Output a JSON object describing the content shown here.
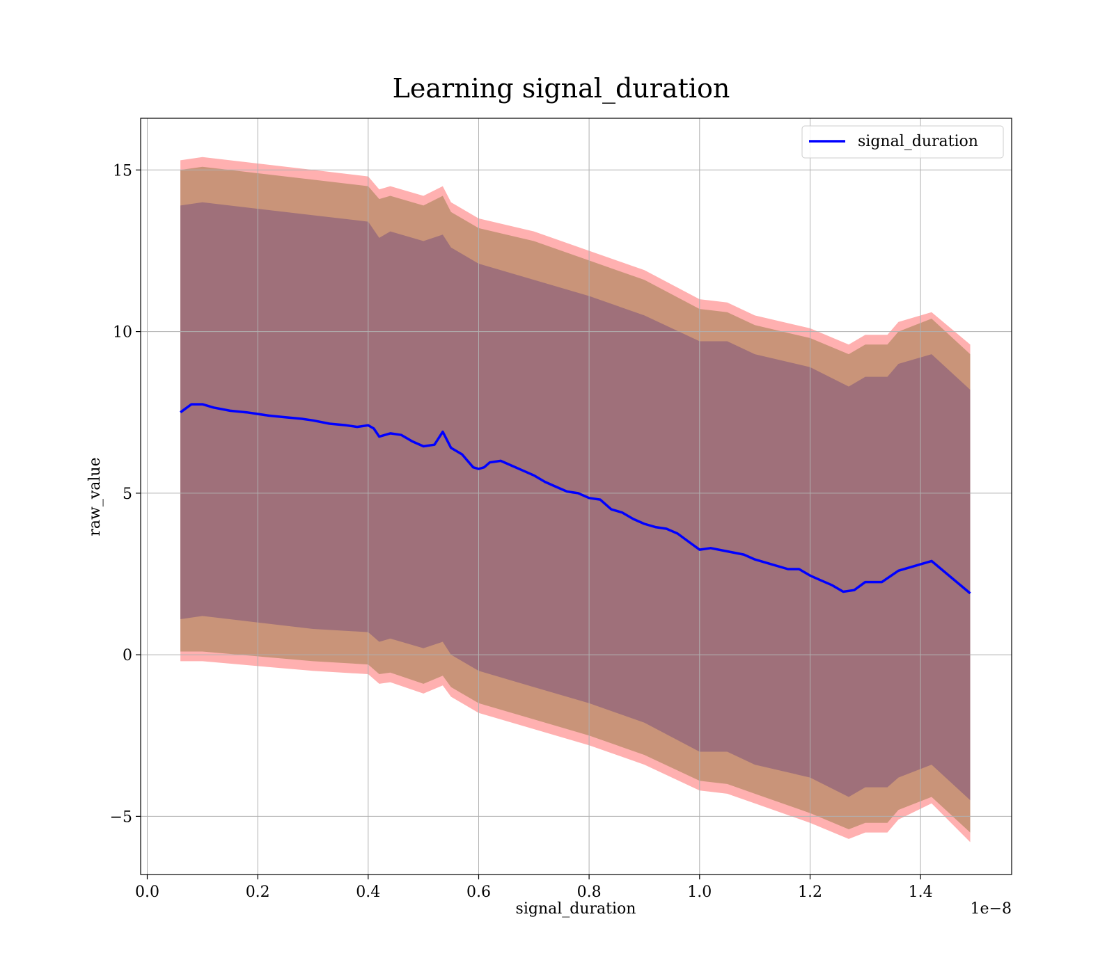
{
  "chart_data": {
    "type": "line",
    "title": "Learning signal_duration",
    "xlabel": "signal_duration",
    "ylabel": "raw_value",
    "x_offset_label": "1e−8",
    "xlim": [
      -0.012,
      1.565
    ],
    "ylim": [
      -6.8,
      16.6
    ],
    "xticks": [
      0.0,
      0.2,
      0.4,
      0.6,
      0.8,
      1.0,
      1.2,
      1.4
    ],
    "xtick_labels": [
      "0.0",
      "0.2",
      "0.4",
      "0.6",
      "0.8",
      "1.0",
      "1.2",
      "1.4"
    ],
    "yticks": [
      -5,
      0,
      5,
      10,
      15
    ],
    "ytick_labels": [
      "−5",
      "0",
      "5",
      "10",
      "15"
    ],
    "grid": true,
    "legend_position": "top-right",
    "colors": {
      "line": "#0000ff",
      "inner_band": "#9f707a",
      "middle_band": "#c99479",
      "outer_band": "#ffb0b0"
    },
    "series": [
      {
        "name": "signal_duration",
        "x": [
          0.06,
          0.08,
          0.1,
          0.12,
          0.15,
          0.18,
          0.2,
          0.22,
          0.25,
          0.28,
          0.3,
          0.33,
          0.36,
          0.38,
          0.4,
          0.41,
          0.42,
          0.44,
          0.46,
          0.48,
          0.5,
          0.52,
          0.535,
          0.55,
          0.57,
          0.58,
          0.59,
          0.6,
          0.61,
          0.62,
          0.64,
          0.66,
          0.68,
          0.7,
          0.72,
          0.74,
          0.76,
          0.78,
          0.8,
          0.82,
          0.84,
          0.86,
          0.88,
          0.9,
          0.92,
          0.94,
          0.96,
          0.98,
          1.0,
          1.02,
          1.05,
          1.08,
          1.1,
          1.13,
          1.16,
          1.18,
          1.2,
          1.22,
          1.24,
          1.26,
          1.28,
          1.3,
          1.33,
          1.36,
          1.42,
          1.49
        ],
        "y": [
          7.5,
          7.75,
          7.75,
          7.65,
          7.55,
          7.5,
          7.45,
          7.4,
          7.35,
          7.3,
          7.25,
          7.15,
          7.1,
          7.05,
          7.1,
          7.0,
          6.75,
          6.85,
          6.8,
          6.6,
          6.45,
          6.5,
          6.9,
          6.4,
          6.2,
          6.0,
          5.8,
          5.75,
          5.8,
          5.95,
          6.0,
          5.85,
          5.7,
          5.55,
          5.35,
          5.2,
          5.05,
          5.0,
          4.85,
          4.8,
          4.5,
          4.4,
          4.2,
          4.05,
          3.95,
          3.9,
          3.75,
          3.5,
          3.25,
          3.3,
          3.2,
          3.1,
          2.95,
          2.8,
          2.65,
          2.65,
          2.45,
          2.3,
          2.15,
          1.95,
          2.0,
          2.25,
          2.25,
          2.6,
          2.9,
          1.9
        ]
      }
    ],
    "bands": [
      {
        "x": [
          0.06,
          0.1,
          0.2,
          0.3,
          0.4,
          0.42,
          0.44,
          0.5,
          0.535,
          0.55,
          0.6,
          0.7,
          0.8,
          0.9,
          1.0,
          1.05,
          1.1,
          1.2,
          1.27,
          1.3,
          1.34,
          1.36,
          1.42,
          1.49
        ],
        "upper": [
          15.3,
          15.4,
          15.2,
          15.0,
          14.8,
          14.4,
          14.5,
          14.2,
          14.5,
          14.0,
          13.5,
          13.1,
          12.5,
          11.9,
          11.0,
          10.9,
          10.5,
          10.1,
          9.6,
          9.9,
          9.9,
          10.3,
          10.6,
          9.6
        ],
        "lower": [
          -0.2,
          -0.2,
          -0.35,
          -0.5,
          -0.6,
          -0.9,
          -0.85,
          -1.2,
          -0.95,
          -1.3,
          -1.8,
          -2.3,
          -2.8,
          -3.4,
          -4.2,
          -4.3,
          -4.6,
          -5.2,
          -5.7,
          -5.5,
          -5.5,
          -5.1,
          -4.6,
          -5.8
        ]
      },
      {
        "x": [
          0.06,
          0.1,
          0.2,
          0.3,
          0.4,
          0.42,
          0.44,
          0.5,
          0.535,
          0.55,
          0.6,
          0.7,
          0.8,
          0.9,
          1.0,
          1.05,
          1.1,
          1.2,
          1.27,
          1.3,
          1.34,
          1.36,
          1.42,
          1.49
        ],
        "upper": [
          15.0,
          15.1,
          14.9,
          14.7,
          14.5,
          14.1,
          14.2,
          13.9,
          14.2,
          13.7,
          13.2,
          12.8,
          12.2,
          11.6,
          10.7,
          10.6,
          10.2,
          9.8,
          9.3,
          9.6,
          9.6,
          10.0,
          10.4,
          9.3
        ],
        "lower": [
          0.1,
          0.1,
          -0.05,
          -0.2,
          -0.3,
          -0.6,
          -0.55,
          -0.9,
          -0.65,
          -1.0,
          -1.5,
          -2.0,
          -2.5,
          -3.1,
          -3.9,
          -4.0,
          -4.3,
          -4.9,
          -5.4,
          -5.2,
          -5.2,
          -4.8,
          -4.4,
          -5.5
        ]
      },
      {
        "x": [
          0.06,
          0.1,
          0.2,
          0.3,
          0.4,
          0.42,
          0.44,
          0.5,
          0.535,
          0.55,
          0.6,
          0.7,
          0.8,
          0.9,
          1.0,
          1.05,
          1.1,
          1.2,
          1.27,
          1.3,
          1.34,
          1.36,
          1.42,
          1.49
        ],
        "upper": [
          13.9,
          14.0,
          13.8,
          13.6,
          13.4,
          12.9,
          13.1,
          12.8,
          13.0,
          12.6,
          12.1,
          11.6,
          11.1,
          10.5,
          9.7,
          9.7,
          9.3,
          8.9,
          8.3,
          8.6,
          8.6,
          9.0,
          9.3,
          8.2
        ],
        "lower": [
          1.1,
          1.2,
          1.0,
          0.8,
          0.7,
          0.4,
          0.5,
          0.2,
          0.4,
          0.0,
          -0.5,
          -1.0,
          -1.5,
          -2.1,
          -3.0,
          -3.0,
          -3.4,
          -3.8,
          -4.4,
          -4.1,
          -4.1,
          -3.8,
          -3.4,
          -4.5
        ]
      }
    ]
  }
}
